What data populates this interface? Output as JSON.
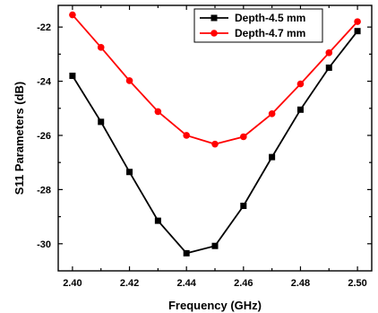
{
  "chart_data": {
    "type": "line",
    "xlabel": "Frequency (GHz)",
    "ylabel": "S11 Parameters (dB)",
    "xlim": [
      2.395,
      2.505
    ],
    "ylim": [
      -31.0,
      -21.2
    ],
    "xticks": [
      "2.40",
      "2.42",
      "2.44",
      "2.46",
      "2.48",
      "2.50"
    ],
    "xtick_values": [
      2.4,
      2.42,
      2.44,
      2.46,
      2.48,
      2.5
    ],
    "yticks": [
      "-22",
      "-24",
      "-26",
      "-28",
      "-30"
    ],
    "ytick_values": [
      -22,
      -24,
      -26,
      -28,
      -30
    ],
    "legend_position": "top-right",
    "grid": false,
    "series": [
      {
        "name": "Depth-4.5 mm",
        "color": "#000000",
        "marker": "square",
        "x": [
          2.4,
          2.41,
          2.42,
          2.43,
          2.44,
          2.45,
          2.46,
          2.47,
          2.48,
          2.49,
          2.5
        ],
        "y": [
          -23.8,
          -25.5,
          -27.35,
          -29.15,
          -30.35,
          -30.08,
          -28.6,
          -26.8,
          -25.05,
          -23.5,
          -22.15
        ]
      },
      {
        "name": "Depth-4.7 mm",
        "color": "#ff0000",
        "marker": "circle",
        "x": [
          2.4,
          2.41,
          2.42,
          2.43,
          2.44,
          2.45,
          2.46,
          2.47,
          2.48,
          2.49,
          2.5
        ],
        "y": [
          -21.55,
          -22.75,
          -23.98,
          -25.12,
          -26.0,
          -26.32,
          -26.05,
          -25.2,
          -24.1,
          -22.95,
          -21.8
        ]
      }
    ]
  }
}
